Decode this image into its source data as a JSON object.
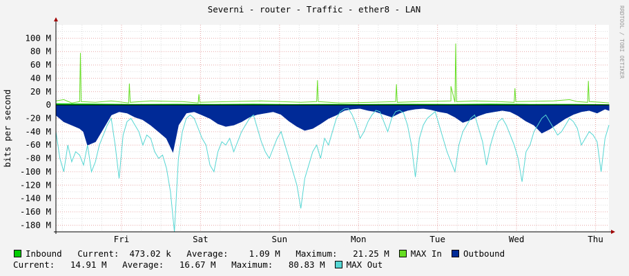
{
  "chart_data": {
    "type": "area",
    "title": "Severni - router - Traffic - ether8 - LAN",
    "ylabel": "bits per second",
    "watermark": "RRDTOOL / TOBI OETIKER",
    "x_ticks": [
      "Fri",
      "Sat",
      "Sun",
      "Mon",
      "Tue",
      "Wed",
      "Thu"
    ],
    "y_ticks": [
      "100 M",
      "80 M",
      "60 M",
      "40 M",
      "20 M",
      "0",
      "-20 M",
      "-40 M",
      "-60 M",
      "-80 M",
      "-100 M",
      "-120 M",
      "-140 M",
      "-160 M",
      "-180 M"
    ],
    "y_tick_values": [
      100,
      80,
      60,
      40,
      20,
      0,
      -20,
      -40,
      -60,
      -80,
      -100,
      -120,
      -140,
      -160,
      -180
    ],
    "ylim": [
      -190,
      120
    ],
    "x_range_days": [
      0,
      7
    ],
    "x_tick_days": [
      0.83,
      1.83,
      2.83,
      3.83,
      4.83,
      5.83,
      6.83
    ],
    "series": [
      {
        "name": "Inbound",
        "color": "#00cc00",
        "x_days": [
          0,
          0.5,
          1,
          1.5,
          2,
          2.5,
          3,
          3.5,
          4,
          4.5,
          5,
          5.5,
          6,
          6.5,
          7
        ],
        "values": [
          2,
          1.5,
          1,
          1.2,
          1,
          1.3,
          0.8,
          1.1,
          0.9,
          1.2,
          1,
          1.4,
          1,
          1.1,
          0.5
        ]
      },
      {
        "name": "MAX In",
        "color": "#66dd22",
        "x_days": [
          0,
          0.1,
          0.2,
          0.3,
          0.31,
          0.32,
          0.5,
          0.7,
          0.92,
          0.93,
          0.94,
          1.2,
          1.6,
          1.8,
          1.81,
          1.82,
          2.2,
          2.6,
          3.1,
          3.3,
          3.31,
          3.32,
          3.6,
          4.0,
          4.3,
          4.31,
          4.32,
          4.6,
          5.0,
          5.0,
          5.05,
          5.06,
          5.07,
          5.3,
          5.6,
          5.8,
          5.81,
          5.82,
          6.3,
          6.5,
          6.6,
          6.73,
          6.74,
          6.75,
          6.9,
          7
        ],
        "values": [
          6,
          8,
          3,
          5,
          78,
          5,
          4,
          6,
          3,
          32,
          4,
          6,
          5,
          3,
          16,
          4,
          5,
          6,
          4,
          5,
          37,
          5,
          3,
          4,
          5,
          31,
          4,
          5,
          6,
          28,
          4,
          92,
          5,
          6,
          5,
          4,
          25,
          5,
          6,
          8,
          5,
          4,
          36,
          5,
          4,
          3
        ]
      },
      {
        "name": "Outbound",
        "color": "#002a97",
        "x_days": [
          0,
          0.1,
          0.2,
          0.3,
          0.35,
          0.4,
          0.5,
          0.6,
          0.7,
          0.8,
          0.9,
          1.0,
          1.1,
          1.2,
          1.3,
          1.4,
          1.48,
          1.55,
          1.65,
          1.75,
          1.85,
          1.95,
          2.05,
          2.15,
          2.25,
          2.35,
          2.45,
          2.55,
          2.65,
          2.75,
          2.85,
          2.95,
          3.05,
          3.15,
          3.25,
          3.35,
          3.45,
          3.55,
          3.65,
          3.75,
          3.85,
          3.95,
          4.05,
          4.15,
          4.25,
          4.35,
          4.45,
          4.55,
          4.65,
          4.75,
          4.85,
          4.95,
          5.05,
          5.15,
          5.25,
          5.35,
          5.45,
          5.55,
          5.65,
          5.75,
          5.85,
          5.95,
          6.05,
          6.15,
          6.25,
          6.35,
          6.45,
          6.55,
          6.65,
          6.75,
          6.85,
          6.95,
          7
        ],
        "values": [
          -15,
          -25,
          -30,
          -35,
          -40,
          -60,
          -55,
          -35,
          -15,
          -10,
          -12,
          -18,
          -22,
          -30,
          -40,
          -50,
          -70,
          -30,
          -12,
          -10,
          -15,
          -20,
          -28,
          -32,
          -30,
          -25,
          -18,
          -14,
          -12,
          -10,
          -14,
          -24,
          -32,
          -38,
          -35,
          -28,
          -20,
          -15,
          -8,
          -6,
          -5,
          -8,
          -10,
          -14,
          -18,
          -12,
          -8,
          -6,
          -5,
          -7,
          -10,
          -12,
          -18,
          -26,
          -22,
          -16,
          -12,
          -10,
          -8,
          -10,
          -16,
          -24,
          -30,
          -42,
          -36,
          -28,
          -20,
          -14,
          -10,
          -8,
          -12,
          -6,
          -8
        ]
      },
      {
        "name": "MAX Out",
        "color": "#55d6d3",
        "x_days": [
          0,
          0.05,
          0.1,
          0.15,
          0.2,
          0.25,
          0.3,
          0.35,
          0.4,
          0.45,
          0.5,
          0.55,
          0.6,
          0.65,
          0.7,
          0.75,
          0.8,
          0.85,
          0.9,
          0.95,
          1.0,
          1.05,
          1.1,
          1.15,
          1.2,
          1.25,
          1.3,
          1.35,
          1.4,
          1.45,
          1.5,
          1.55,
          1.6,
          1.65,
          1.7,
          1.75,
          1.8,
          1.85,
          1.9,
          1.95,
          2.0,
          2.05,
          2.1,
          2.15,
          2.2,
          2.25,
          2.3,
          2.35,
          2.4,
          2.45,
          2.5,
          2.55,
          2.6,
          2.65,
          2.7,
          2.75,
          2.8,
          2.85,
          2.9,
          2.95,
          3.0,
          3.05,
          3.1,
          3.15,
          3.2,
          3.25,
          3.3,
          3.35,
          3.4,
          3.45,
          3.5,
          3.55,
          3.6,
          3.65,
          3.7,
          3.75,
          3.8,
          3.85,
          3.9,
          3.95,
          4.0,
          4.05,
          4.1,
          4.15,
          4.2,
          4.25,
          4.3,
          4.35,
          4.4,
          4.45,
          4.5,
          4.55,
          4.6,
          4.65,
          4.7,
          4.75,
          4.8,
          4.85,
          4.9,
          4.95,
          5.0,
          5.05,
          5.1,
          5.15,
          5.2,
          5.25,
          5.3,
          5.35,
          5.4,
          5.45,
          5.5,
          5.55,
          5.6,
          5.65,
          5.7,
          5.75,
          5.8,
          5.85,
          5.9,
          5.95,
          6.0,
          6.05,
          6.1,
          6.15,
          6.2,
          6.25,
          6.3,
          6.35,
          6.4,
          6.45,
          6.5,
          6.55,
          6.6,
          6.65,
          6.7,
          6.75,
          6.8,
          6.85,
          6.9,
          6.95,
          7
        ],
        "values": [
          -40,
          -80,
          -100,
          -60,
          -85,
          -70,
          -75,
          -90,
          -60,
          -100,
          -85,
          -60,
          -45,
          -30,
          -20,
          -60,
          -110,
          -45,
          -25,
          -20,
          -30,
          -40,
          -60,
          -45,
          -50,
          -70,
          -80,
          -75,
          -95,
          -130,
          -190,
          -80,
          -40,
          -20,
          -15,
          -20,
          -35,
          -50,
          -60,
          -90,
          -100,
          -70,
          -55,
          -60,
          -50,
          -70,
          -55,
          -40,
          -30,
          -20,
          -15,
          -35,
          -55,
          -70,
          -80,
          -65,
          -50,
          -40,
          -60,
          -80,
          -100,
          -120,
          -155,
          -110,
          -90,
          -70,
          -60,
          -80,
          -50,
          -60,
          -40,
          -20,
          -10,
          -6,
          -5,
          -15,
          -30,
          -50,
          -40,
          -25,
          -15,
          -8,
          -10,
          -25,
          -40,
          -20,
          -10,
          -8,
          -12,
          -30,
          -60,
          -108,
          -50,
          -30,
          -20,
          -15,
          -10,
          -30,
          -50,
          -70,
          -85,
          -100,
          -60,
          -40,
          -30,
          -20,
          -15,
          -35,
          -55,
          -90,
          -60,
          -40,
          -25,
          -20,
          -30,
          -45,
          -60,
          -80,
          -115,
          -70,
          -60,
          -40,
          -30,
          -20,
          -15,
          -25,
          -35,
          -45,
          -40,
          -30,
          -20,
          -25,
          -35,
          -60,
          -50,
          -40,
          -45,
          -55,
          -100,
          -50,
          -30
        ]
      }
    ]
  },
  "legend": {
    "row1": [
      {
        "type": "swatch",
        "series": "Inbound",
        "color": "#00cc00"
      },
      {
        "type": "text",
        "text": "Inbound   Current:  473.02 k   Average:    1.09 M   Maximum:   21.25 M"
      },
      {
        "type": "swatch",
        "series": "MAX In",
        "color": "#66dd22"
      },
      {
        "type": "text",
        "text": "MAX In"
      },
      {
        "type": "swatch",
        "series": "Outbound",
        "color": "#002a97"
      },
      {
        "type": "text",
        "text": "Outbound"
      }
    ],
    "row2": [
      {
        "type": "text",
        "text": "  Current:   14.91 M   Average:   16.67 M   Maximum:   80.83 M"
      },
      {
        "type": "swatch",
        "series": "MAX Out",
        "color": "#55d6d3"
      },
      {
        "type": "text",
        "text": "MAX Out"
      }
    ]
  }
}
